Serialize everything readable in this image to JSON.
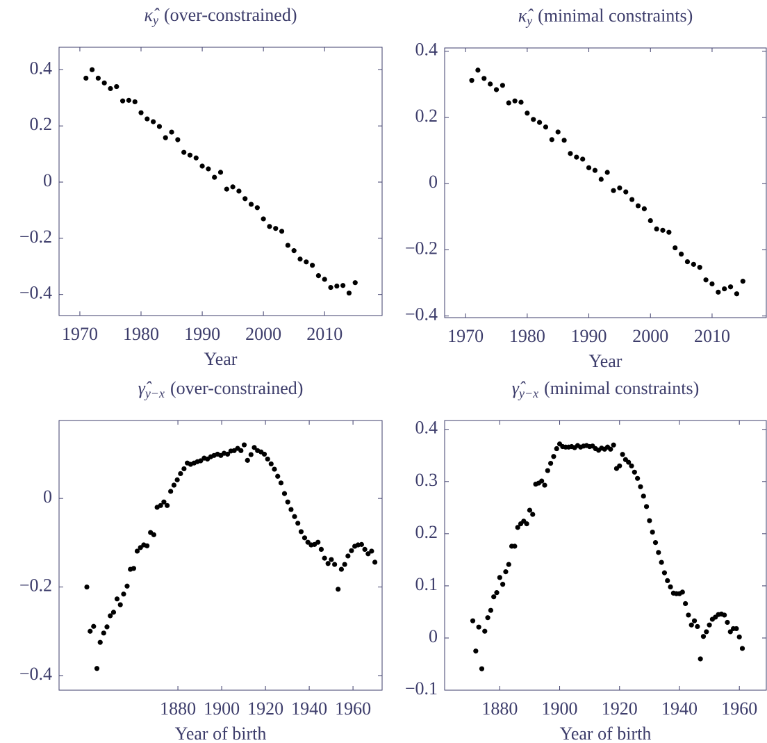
{
  "chart_data": [
    {
      "type": "scatter",
      "title_symbol": "κ̂",
      "title_subscript": "y",
      "title": "(over-constrained)",
      "xlabel": "Year",
      "color": "#000000",
      "axis_color": "#3d3d6b",
      "x": [
        1971,
        1972,
        1973,
        1974,
        1975,
        1976,
        1977,
        1978,
        1979,
        1980,
        1981,
        1982,
        1983,
        1984,
        1985,
        1986,
        1987,
        1988,
        1989,
        1990,
        1991,
        1992,
        1993,
        1994,
        1995,
        1996,
        1997,
        1998,
        1999,
        2000,
        2001,
        2002,
        2003,
        2004,
        2005,
        2006,
        2007,
        2008,
        2009,
        2010,
        2011,
        2012,
        2013,
        2014,
        2015
      ],
      "values": [
        0.37,
        0.4,
        0.37,
        0.353,
        0.333,
        0.34,
        0.289,
        0.291,
        0.286,
        0.247,
        0.225,
        0.215,
        0.198,
        0.158,
        0.178,
        0.151,
        0.106,
        0.096,
        0.086,
        0.057,
        0.047,
        0.017,
        0.035,
        -0.025,
        -0.017,
        -0.032,
        -0.059,
        -0.079,
        -0.091,
        -0.131,
        -0.158,
        -0.165,
        -0.175,
        -0.225,
        -0.244,
        -0.274,
        -0.284,
        -0.296,
        -0.333,
        -0.346,
        -0.375,
        -0.37,
        -0.368,
        -0.395,
        -0.358
      ],
      "xlim": [
        1966.6,
        2019.4
      ],
      "xticks": [
        1970,
        1980,
        1990,
        2000,
        2010
      ],
      "ylim": [
        -0.475,
        0.48
      ],
      "yticks": [
        {
          "value": -0.4,
          "label": "−0.4"
        },
        {
          "value": -0.2,
          "label": "−0.2"
        },
        0,
        0.2,
        0.4
      ]
    },
    {
      "type": "scatter",
      "title_symbol": "κ̂",
      "title_subscript": "y",
      "title": "(minimal constraints)",
      "xlabel": "Year",
      "color": "#000000",
      "axis_color": "#3d3d6b",
      "x": [
        1971,
        1972,
        1973,
        1974,
        1975,
        1976,
        1977,
        1978,
        1979,
        1980,
        1981,
        1982,
        1983,
        1984,
        1985,
        1986,
        1987,
        1988,
        1989,
        1990,
        1991,
        1992,
        1993,
        1994,
        1995,
        1996,
        1997,
        1998,
        1999,
        2000,
        2001,
        2002,
        2003,
        2004,
        2005,
        2006,
        2007,
        2008,
        2009,
        2010,
        2011,
        2012,
        2013,
        2014,
        2015
      ],
      "values": [
        0.312,
        0.343,
        0.318,
        0.301,
        0.284,
        0.297,
        0.244,
        0.25,
        0.246,
        0.213,
        0.194,
        0.185,
        0.171,
        0.133,
        0.156,
        0.131,
        0.091,
        0.08,
        0.074,
        0.048,
        0.04,
        0.013,
        0.034,
        -0.021,
        -0.013,
        -0.025,
        -0.048,
        -0.067,
        -0.076,
        -0.112,
        -0.137,
        -0.141,
        -0.147,
        -0.194,
        -0.213,
        -0.236,
        -0.244,
        -0.253,
        -0.291,
        -0.303,
        -0.328,
        -0.318,
        -0.312,
        -0.333,
        -0.295
      ],
      "xlim": [
        1966.6,
        2018.8
      ],
      "xticks": [
        1970,
        1980,
        1990,
        2000,
        2010
      ],
      "ylim": [
        -0.405,
        0.41
      ],
      "yticks": [
        {
          "value": -0.4,
          "label": "−0.4"
        },
        {
          "value": -0.2,
          "label": "−0.2"
        },
        0,
        0.2,
        0.4
      ]
    },
    {
      "type": "scatter",
      "title_symbol": "γ̂",
      "title_subscript": "y−x",
      "title": "(over-constrained)",
      "xlabel": "Year of birth",
      "color": "#000000",
      "axis_color": "#3d3d6b",
      "x": [
        1838.4,
        1839.9,
        1841.5,
        1843.0,
        1844.5,
        1846.1,
        1847.6,
        1849.1,
        1850.6,
        1852.2,
        1853.7,
        1855.2,
        1856.8,
        1858.3,
        1859.8,
        1861.4,
        1862.9,
        1864.4,
        1865.9,
        1867.5,
        1869.0,
        1870.5,
        1872.1,
        1873.6,
        1875.1,
        1876.7,
        1878.2,
        1879.7,
        1881.2,
        1882.8,
        1884.3,
        1885.8,
        1887.4,
        1888.9,
        1890.4,
        1892.0,
        1893.5,
        1895.0,
        1896.5,
        1898.1,
        1899.6,
        1901.1,
        1902.7,
        1904.2,
        1905.7,
        1907.3,
        1908.8,
        1910.3,
        1911.8,
        1913.4,
        1914.9,
        1916.4,
        1918.0,
        1919.5,
        1921.0,
        1922.6,
        1924.1,
        1925.6,
        1927.1,
        1928.7,
        1930.2,
        1931.7,
        1933.3,
        1934.8,
        1936.3,
        1937.9,
        1939.4,
        1940.9,
        1942.4,
        1944.0,
        1945.5,
        1947.0,
        1948.6,
        1950.1,
        1951.6,
        1953.2,
        1954.7,
        1956.2,
        1957.7,
        1959.3,
        1960.8,
        1962.3,
        1963.9,
        1965.4,
        1966.9,
        1968.5,
        1970.0
      ],
      "values": [
        -0.2,
        -0.3,
        -0.289,
        -0.384,
        -0.325,
        -0.304,
        -0.29,
        -0.265,
        -0.257,
        -0.227,
        -0.24,
        -0.216,
        -0.198,
        -0.16,
        -0.158,
        -0.119,
        -0.111,
        -0.105,
        -0.107,
        -0.077,
        -0.082,
        -0.02,
        -0.016,
        -0.008,
        -0.016,
        0.016,
        0.03,
        0.042,
        0.056,
        0.067,
        0.08,
        0.077,
        0.08,
        0.083,
        0.085,
        0.091,
        0.089,
        0.094,
        0.097,
        0.1,
        0.097,
        0.102,
        0.1,
        0.107,
        0.108,
        0.113,
        0.108,
        0.121,
        0.086,
        0.099,
        0.115,
        0.108,
        0.105,
        0.1,
        0.089,
        0.078,
        0.066,
        0.05,
        0.035,
        0.011,
        -0.008,
        -0.025,
        -0.041,
        -0.056,
        -0.075,
        -0.089,
        -0.099,
        -0.105,
        -0.104,
        -0.099,
        -0.115,
        -0.135,
        -0.147,
        -0.138,
        -0.149,
        -0.205,
        -0.16,
        -0.149,
        -0.13,
        -0.118,
        -0.108,
        -0.105,
        -0.104,
        -0.115,
        -0.125,
        -0.119,
        -0.144
      ],
      "xlim": [
        1825.7,
        1973.3
      ],
      "xticks": [
        1880,
        1900,
        1920,
        1940,
        1960
      ],
      "ylim": [
        -0.433,
        0.176
      ],
      "yticks": [
        {
          "value": -0.4,
          "label": "−0.4"
        },
        {
          "value": -0.2,
          "label": "−0.2"
        },
        0
      ]
    },
    {
      "type": "scatter",
      "title_symbol": "γ̂",
      "title_subscript": "y−x",
      "title": "(minimal constraints)",
      "xlabel": "Year of birth",
      "color": "#000000",
      "axis_color": "#3d3d6b",
      "x": [
        1871,
        1872,
        1873,
        1874,
        1875,
        1876,
        1877,
        1878,
        1879,
        1880,
        1881,
        1882,
        1883,
        1884,
        1885,
        1886,
        1887,
        1888,
        1889,
        1890,
        1891,
        1892,
        1893,
        1894,
        1895,
        1896,
        1897,
        1898,
        1899,
        1900,
        1901,
        1902,
        1903,
        1904,
        1905,
        1906,
        1907,
        1908,
        1909,
        1910,
        1911,
        1912,
        1913,
        1914,
        1915,
        1916,
        1917,
        1918,
        1919,
        1920,
        1921,
        1922,
        1923,
        1924,
        1925,
        1926,
        1927,
        1928,
        1929,
        1930,
        1931,
        1932,
        1933,
        1934,
        1935,
        1936,
        1937,
        1938,
        1939,
        1940,
        1941,
        1942,
        1943,
        1944,
        1945,
        1946,
        1947,
        1948,
        1949,
        1950,
        1951,
        1952,
        1953,
        1954,
        1955,
        1956,
        1957,
        1958,
        1959,
        1960,
        1961
      ],
      "values": [
        0.033,
        -0.025,
        0.021,
        -0.059,
        0.013,
        0.039,
        0.053,
        0.079,
        0.087,
        0.116,
        0.103,
        0.127,
        0.141,
        0.176,
        0.176,
        0.212,
        0.219,
        0.224,
        0.219,
        0.245,
        0.237,
        0.295,
        0.297,
        0.301,
        0.293,
        0.321,
        0.335,
        0.348,
        0.363,
        0.372,
        0.367,
        0.366,
        0.366,
        0.367,
        0.365,
        0.369,
        0.366,
        0.368,
        0.369,
        0.367,
        0.368,
        0.363,
        0.36,
        0.364,
        0.362,
        0.366,
        0.362,
        0.37,
        0.325,
        0.33,
        0.352,
        0.342,
        0.337,
        0.33,
        0.318,
        0.306,
        0.29,
        0.272,
        0.252,
        0.225,
        0.203,
        0.183,
        0.164,
        0.145,
        0.125,
        0.11,
        0.098,
        0.086,
        0.085,
        0.085,
        0.088,
        0.066,
        0.044,
        0.025,
        0.033,
        0.022,
        -0.04,
        0.003,
        0.012,
        0.025,
        0.036,
        0.04,
        0.045,
        0.046,
        0.044,
        0.03,
        0.012,
        0.018,
        0.018,
        0.002,
        -0.02
      ],
      "xlim": [
        1861.6,
        1969.0
      ],
      "xticks": [
        1880,
        1900,
        1920,
        1940,
        1960
      ],
      "ylim": [
        -0.1,
        0.417
      ],
      "yticks": [
        {
          "value": -0.1,
          "label": "−0.1"
        },
        0,
        0.1,
        0.2,
        0.3,
        0.4
      ]
    }
  ]
}
